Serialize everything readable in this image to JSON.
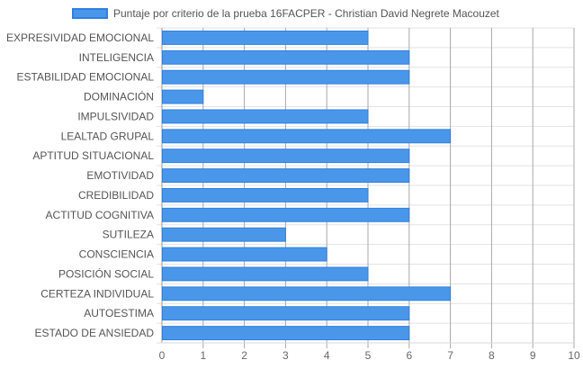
{
  "chart_data": {
    "type": "bar",
    "orientation": "horizontal",
    "legend_position": "top",
    "grid": true,
    "categories": [
      "EXPRESIVIDAD EMOCIONAL",
      "INTELIGENCIA",
      "ESTABILIDAD EMOCIONAL",
      "DOMINACIÓN",
      "IMPULSIVIDAD",
      "LEALTAD GRUPAL",
      "APTITUD SITUACIONAL",
      "EMOTIVIDAD",
      "CREDIBILIDAD",
      "ACTITUD COGNITIVA",
      "SUTILEZA",
      "CONSCIENCIA",
      "POSICIÓN SOCIAL",
      "CERTEZA INDIVIDUAL",
      "AUTOESTIMA",
      "ESTADO DE ANSIEDAD"
    ],
    "series": [
      {
        "name": "Puntaje por criterio de la prueba 16FACPER - Christian David Negrete Macouzet",
        "values": [
          5,
          6,
          6,
          1,
          5,
          7,
          6,
          6,
          5,
          6,
          3,
          4,
          5,
          7,
          6,
          6
        ],
        "color": "#4a97ea",
        "border_color": "#2f7fe0"
      }
    ],
    "xlim": [
      0,
      10
    ],
    "x_ticks": [
      "0",
      "1",
      "2",
      "3",
      "4",
      "5",
      "6",
      "7",
      "8",
      "9",
      "10"
    ]
  }
}
